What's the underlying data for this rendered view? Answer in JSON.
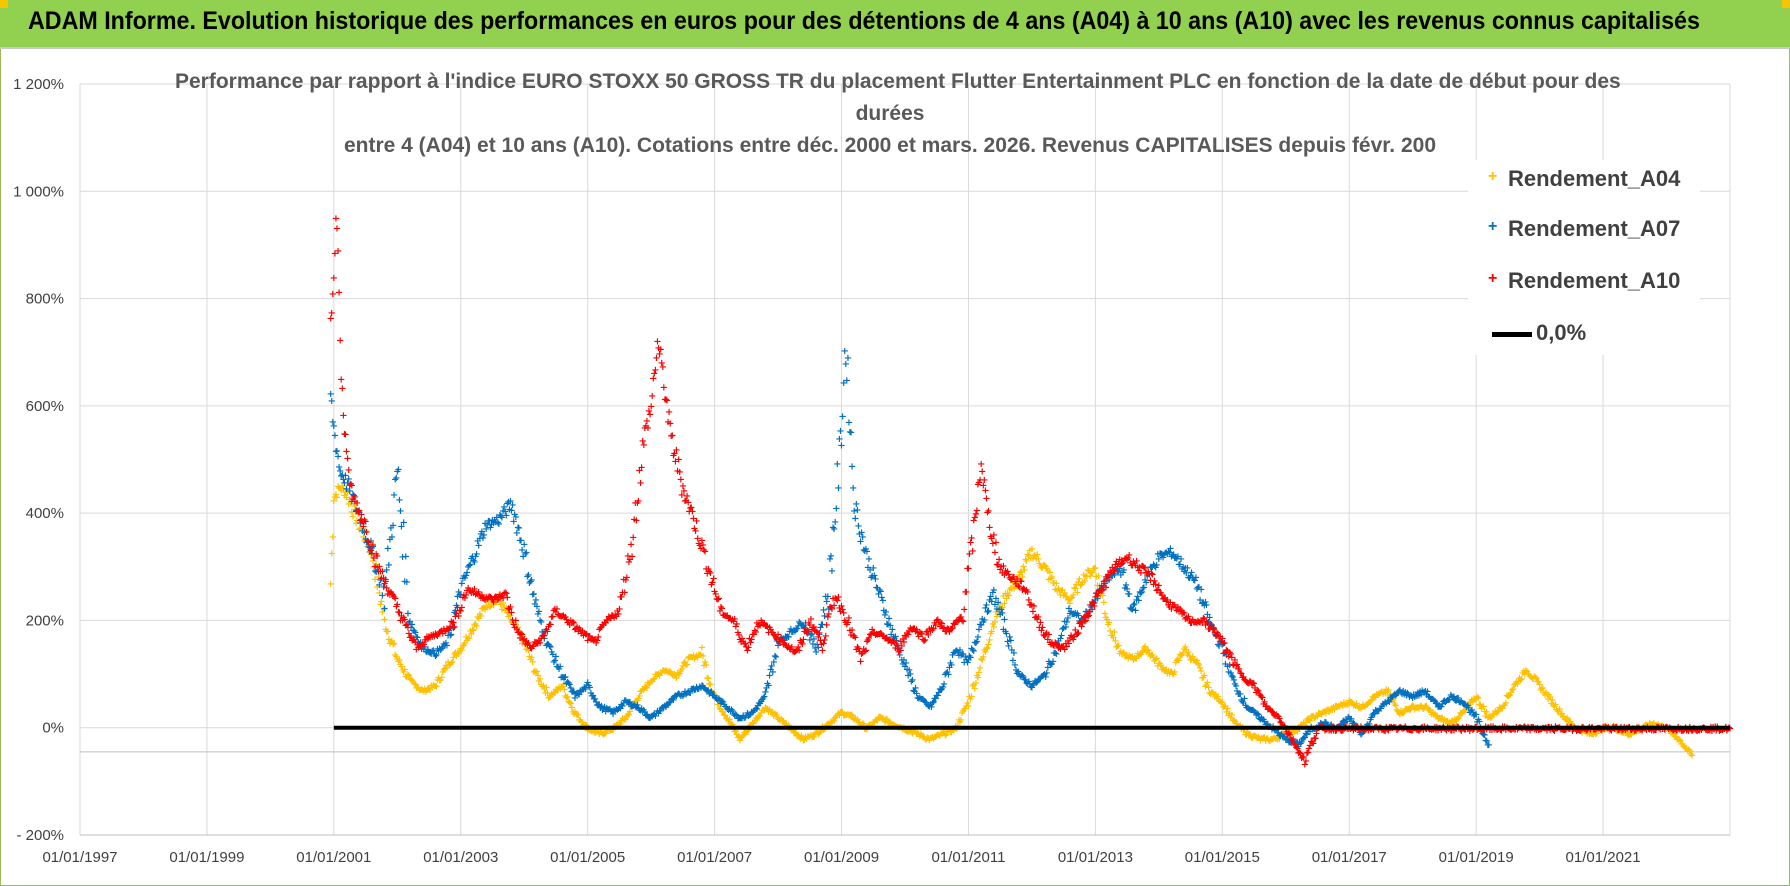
{
  "header": {
    "title": "ADAM Informe. Evolution historique des performances en euros pour des détentions de 4 ans (A04) à 10 ans (A10) avec les revenus connus capitalisés"
  },
  "colors": {
    "banner": "#92d050",
    "a04": "#ffc000",
    "a07": "#0070c0",
    "a10": "#ff0000",
    "zero": "#000000"
  },
  "chart_data": {
    "type": "scatter",
    "title_lines": [
      "Performance par rapport à l'indice EURO STOXX 50 GROSS TR  du placement Flutter Entertainment PLC en fonction de la date de début pour des",
      "durées",
      "entre 4 (A04) et 10 ans (A10).  Cotations entre déc. 2000 et mars. 2026. Revenus CAPITALISES  depuis févr. 200"
    ],
    "x_ticks": [
      "01/01/1997",
      "01/01/1999",
      "01/01/2001",
      "01/01/2003",
      "01/01/2005",
      "01/01/2007",
      "01/01/2009",
      "01/01/2011",
      "01/01/2013",
      "01/01/2015",
      "01/01/2017",
      "01/01/2019",
      "01/01/2021"
    ],
    "y_ticks": [
      "- 200%",
      "0%",
      "200%",
      "400%",
      "600%",
      "800%",
      "1 000%",
      "1 200%"
    ],
    "xlim": [
      1997.0,
      2023.0
    ],
    "ylim": [
      -200,
      1200
    ],
    "series": [
      {
        "name": "Rendement_A04",
        "color": "#ffc000",
        "x": [
          2000.95,
          2001.0,
          2001.1,
          2001.2,
          2001.4,
          2001.6,
          2001.8,
          2002.0,
          2002.2,
          2002.4,
          2002.6,
          2002.8,
          2003.0,
          2003.2,
          2003.4,
          2003.6,
          2003.8,
          2004.0,
          2004.2,
          2004.4,
          2004.6,
          2004.8,
          2005.0,
          2005.2,
          2005.4,
          2005.6,
          2005.8,
          2006.0,
          2006.2,
          2006.4,
          2006.6,
          2006.8,
          2007.0,
          2007.2,
          2007.4,
          2007.6,
          2007.8,
          2008.0,
          2008.2,
          2008.4,
          2008.6,
          2008.8,
          2009.0,
          2009.2,
          2009.4,
          2009.6,
          2009.8,
          2010.0,
          2010.2,
          2010.4,
          2010.6,
          2010.8,
          2011.0,
          2011.2,
          2011.4,
          2011.6,
          2011.8,
          2012.0,
          2012.2,
          2012.4,
          2012.6,
          2012.8,
          2013.0,
          2013.2,
          2013.4,
          2013.6,
          2013.8,
          2014.0,
          2014.2,
          2014.4,
          2014.6,
          2014.8,
          2015.0,
          2015.2,
          2015.4,
          2015.6,
          2015.8,
          2016.0,
          2016.2,
          2016.4,
          2016.6,
          2016.8,
          2017.0,
          2017.2,
          2017.4,
          2017.6,
          2017.8,
          2018.0,
          2018.2,
          2018.4,
          2018.6,
          2018.8,
          2019.0,
          2019.2,
          2019.4,
          2019.6,
          2019.8,
          2020.0,
          2020.2,
          2020.4,
          2020.6,
          2020.8,
          2021.0,
          2021.2,
          2021.4,
          2021.6,
          2021.8,
          2022.0,
          2022.2,
          2022.4
        ],
        "y": [
          270,
          430,
          450,
          440,
          380,
          330,
          200,
          130,
          90,
          70,
          80,
          120,
          150,
          190,
          230,
          240,
          200,
          160,
          100,
          60,
          80,
          30,
          0,
          -10,
          0,
          20,
          60,
          90,
          110,
          100,
          130,
          140,
          60,
          20,
          -20,
          10,
          40,
          20,
          0,
          -20,
          -10,
          10,
          30,
          20,
          0,
          20,
          10,
          0,
          -10,
          -20,
          -10,
          0,
          50,
          120,
          200,
          250,
          280,
          330,
          300,
          260,
          240,
          280,
          300,
          200,
          140,
          130,
          150,
          120,
          100,
          150,
          120,
          70,
          50,
          10,
          -10,
          -20,
          -20,
          -10,
          0,
          20,
          30,
          40,
          50,
          40,
          60,
          70,
          30,
          40,
          40,
          20,
          10,
          30,
          60,
          20,
          40,
          80,
          110,
          80,
          50,
          20,
          0,
          -10,
          0,
          0,
          -10,
          0,
          10,
          0,
          -20,
          -50
        ]
      },
      {
        "name": "Rendement_A07",
        "color": "#0070c0",
        "x": [
          2000.95,
          2001.0,
          2001.1,
          2001.2,
          2001.4,
          2001.6,
          2001.8,
          2002.0,
          2002.2,
          2002.4,
          2002.6,
          2002.8,
          2003.0,
          2003.2,
          2003.4,
          2003.6,
          2003.8,
          2004.0,
          2004.2,
          2004.4,
          2004.6,
          2004.8,
          2005.0,
          2005.2,
          2005.4,
          2005.6,
          2005.8,
          2006.0,
          2006.2,
          2006.4,
          2006.6,
          2006.8,
          2007.0,
          2007.2,
          2007.4,
          2007.6,
          2007.8,
          2008.0,
          2008.2,
          2008.4,
          2008.6,
          2008.8,
          2009.0,
          2009.05,
          2009.1,
          2009.2,
          2009.4,
          2009.6,
          2009.8,
          2010.0,
          2010.2,
          2010.4,
          2010.6,
          2010.8,
          2011.0,
          2011.2,
          2011.4,
          2011.6,
          2011.8,
          2012.0,
          2012.2,
          2012.4,
          2012.6,
          2012.8,
          2013.0,
          2013.2,
          2013.4,
          2013.6,
          2013.8,
          2014.0,
          2014.2,
          2014.4,
          2014.6,
          2014.8,
          2015.0,
          2015.2,
          2015.4,
          2015.6,
          2015.8,
          2016.0,
          2016.2,
          2016.4,
          2016.6,
          2016.8,
          2017.0,
          2017.2,
          2017.4,
          2017.6,
          2017.8,
          2018.0,
          2018.2,
          2018.4,
          2018.6,
          2018.8,
          2019.0,
          2019.2
        ],
        "y": [
          620,
          560,
          480,
          460,
          400,
          330,
          250,
          480,
          200,
          150,
          140,
          160,
          260,
          320,
          380,
          390,
          420,
          330,
          220,
          150,
          100,
          60,
          80,
          40,
          30,
          50,
          40,
          20,
          40,
          60,
          70,
          80,
          60,
          40,
          20,
          30,
          60,
          160,
          180,
          200,
          150,
          260,
          550,
          700,
          650,
          420,
          320,
          250,
          180,
          120,
          60,
          40,
          80,
          150,
          120,
          200,
          250,
          180,
          100,
          80,
          100,
          150,
          220,
          200,
          240,
          280,
          300,
          220,
          280,
          320,
          330,
          300,
          270,
          200,
          150,
          80,
          40,
          20,
          0,
          -20,
          -30,
          0,
          10,
          0,
          20,
          -10,
          30,
          50,
          70,
          60,
          70,
          40,
          60,
          50,
          20,
          -30
        ]
      },
      {
        "name": "Rendement_A10",
        "color": "#ff0000",
        "x": [
          2000.95,
          2001.0,
          2001.05,
          2001.1,
          2001.2,
          2001.3,
          2001.5,
          2001.7,
          2001.9,
          2002.1,
          2002.3,
          2002.5,
          2002.7,
          2002.9,
          2003.1,
          2003.3,
          2003.5,
          2003.7,
          2003.9,
          2004.1,
          2004.3,
          2004.5,
          2004.7,
          2004.9,
          2005.1,
          2005.3,
          2005.5,
          2005.7,
          2005.9,
          2006.0,
          2006.1,
          2006.2,
          2006.3,
          2006.5,
          2006.7,
          2006.9,
          2007.1,
          2007.3,
          2007.5,
          2007.7,
          2007.9,
          2008.1,
          2008.3,
          2008.5,
          2008.7,
          2008.9,
          2009.1,
          2009.3,
          2009.5,
          2009.7,
          2009.9,
          2010.1,
          2010.3,
          2010.5,
          2010.7,
          2010.9,
          2011.1,
          2011.2,
          2011.3,
          2011.5,
          2011.7,
          2011.9,
          2012.1,
          2012.3,
          2012.5,
          2012.7,
          2012.9,
          2013.1,
          2013.3,
          2013.5,
          2013.7,
          2013.9,
          2014.1,
          2014.3,
          2014.5,
          2014.7,
          2014.9,
          2015.1,
          2015.3,
          2015.5,
          2015.7,
          2015.9,
          2016.1,
          2016.3,
          2016.5,
          2017.0,
          2017.5,
          2018.0,
          2018.5,
          2019.0,
          2019.5,
          2020.0,
          2020.5,
          2021.0,
          2021.5,
          2022.0,
          2022.5,
          2023.0
        ],
        "y": [
          780,
          830,
          980,
          700,
          500,
          430,
          380,
          300,
          250,
          200,
          150,
          170,
          180,
          200,
          260,
          250,
          240,
          250,
          180,
          150,
          170,
          220,
          200,
          180,
          160,
          200,
          220,
          350,
          550,
          600,
          720,
          650,
          550,
          450,
          380,
          300,
          220,
          200,
          150,
          200,
          180,
          160,
          140,
          200,
          160,
          250,
          200,
          130,
          180,
          170,
          150,
          190,
          170,
          200,
          180,
          210,
          380,
          500,
          400,
          300,
          280,
          260,
          200,
          160,
          150,
          180,
          220,
          260,
          300,
          320,
          300,
          280,
          240,
          220,
          200,
          200,
          180,
          140,
          100,
          80,
          40,
          20,
          -20,
          -60,
          0,
          0,
          0,
          0,
          0,
          0,
          0,
          0,
          0,
          0,
          0,
          0,
          0,
          0
        ]
      }
    ],
    "zero_line": {
      "name": "0,0%",
      "x_start": 2001.0,
      "x_end": 2023.0,
      "y": 0
    },
    "legend": {
      "position": "top-right"
    }
  }
}
